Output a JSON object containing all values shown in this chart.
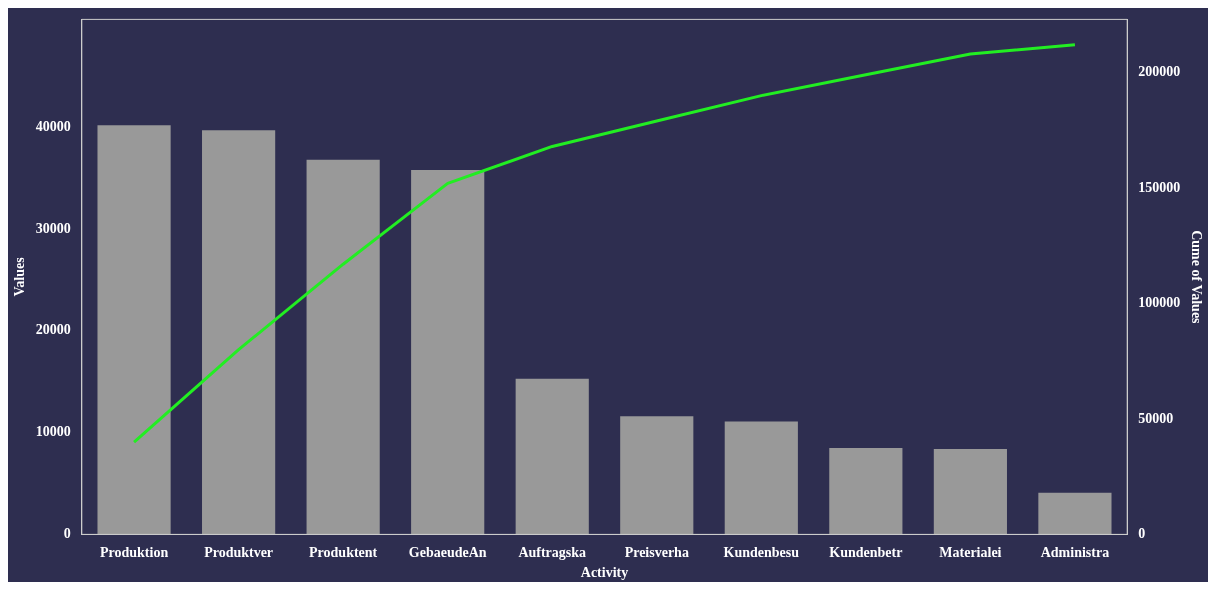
{
  "chart_data": {
    "type": "bar",
    "xlabel": "Activity",
    "ylabel": "Values",
    "y2label": "Cume of Values",
    "categories": [
      "Produktion",
      "Produktver",
      "Produktent",
      "GebaeudeAn",
      "Auftragska",
      "Preisverha",
      "Kundenbesu",
      "Kundenbetr",
      "Materialei",
      "Administra"
    ],
    "series": [
      {
        "color": "#999999",
        "values": [
          40200,
          39700,
          36800,
          35800,
          15300,
          11600,
          11100,
          8500,
          8400,
          4100
        ]
      },
      {
        "type": "line",
        "axis": "y2",
        "color": "#22ee22",
        "values": [
          40000,
          80000,
          117000,
          152000,
          168000,
          179000,
          190000,
          199000,
          208000,
          212000
        ]
      }
    ],
    "ylim": [
      0,
      50600
    ],
    "yticks": [
      0,
      10000,
      20000,
      30000,
      40000
    ],
    "y2lim": [
      0,
      223000
    ],
    "y2ticks": [
      0,
      50000,
      100000,
      150000,
      200000
    ],
    "grid": false,
    "legend": false
  }
}
